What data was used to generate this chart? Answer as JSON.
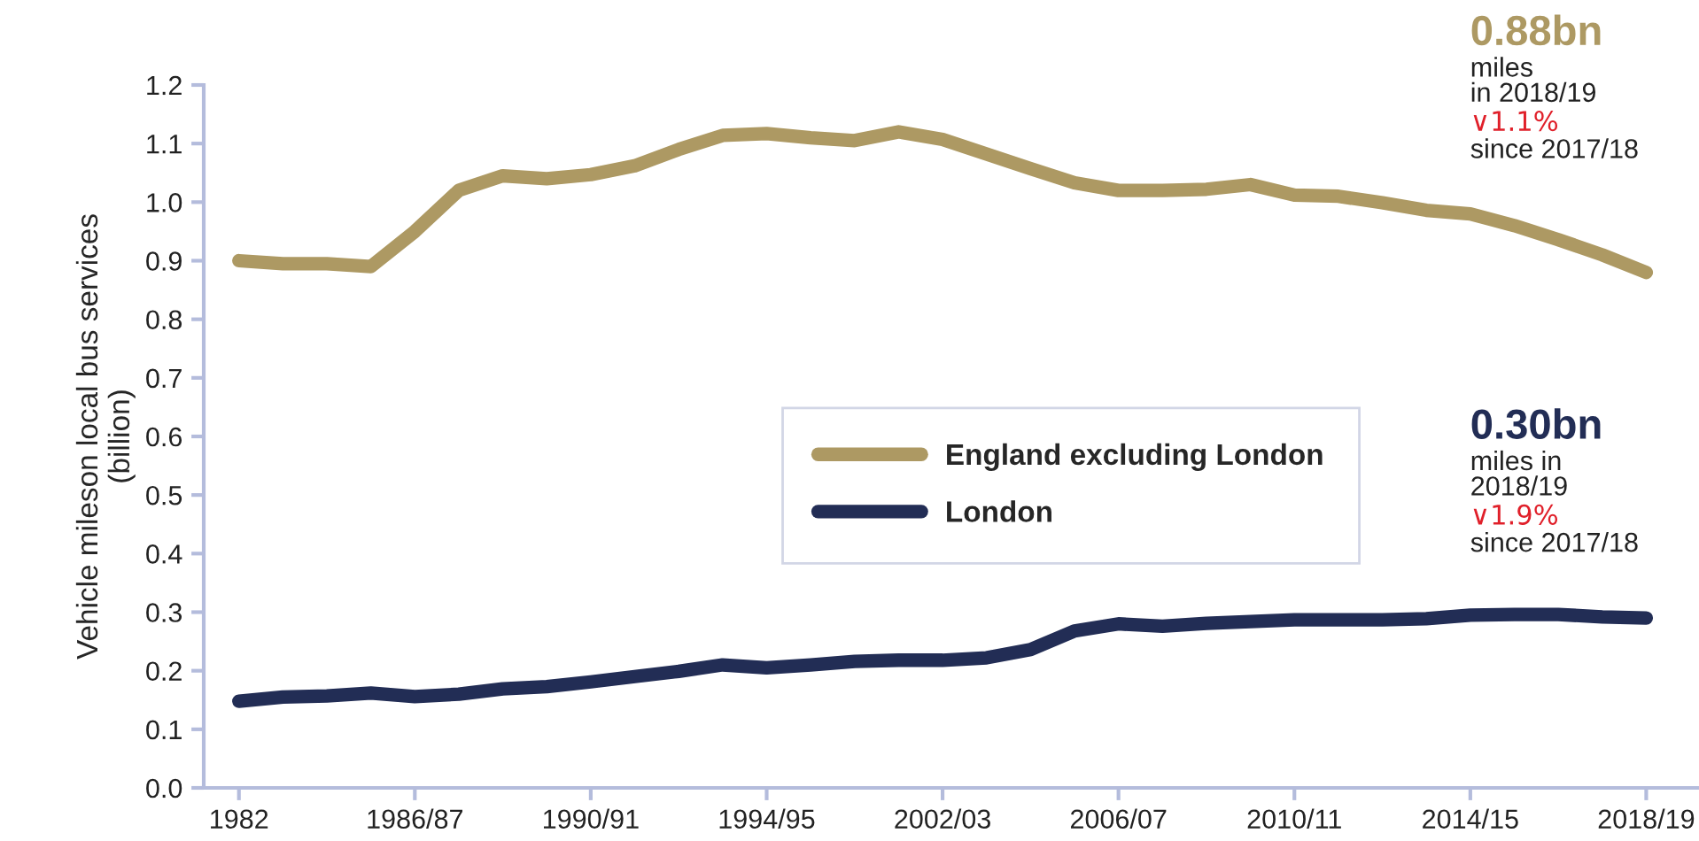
{
  "chart_data": {
    "type": "line",
    "ylabel": "Vehicle mileson local bus services\n(billion)",
    "categories": [
      "1982",
      null,
      null,
      null,
      "1986/87",
      null,
      null,
      null,
      "1990/91",
      null,
      null,
      null,
      "1994/95",
      null,
      null,
      null,
      "2002/03",
      null,
      null,
      null,
      "2006/07",
      null,
      null,
      null,
      "2010/11",
      null,
      null,
      null,
      "2014/15",
      null,
      null,
      null,
      "2018/19"
    ],
    "series": [
      {
        "name": "England excluding London",
        "color": "#ad9963",
        "values": [
          0.9,
          0.895,
          0.895,
          0.89,
          0.95,
          1.02,
          1.045,
          1.04,
          1.047,
          1.062,
          1.09,
          1.114,
          1.117,
          1.11,
          1.105,
          1.12,
          1.107,
          1.082,
          1.057,
          1.033,
          1.02,
          1.02,
          1.022,
          1.03,
          1.012,
          1.01,
          0.999,
          0.986,
          0.98,
          0.96,
          0.936,
          0.91,
          0.88
        ]
      },
      {
        "name": "London",
        "color": "#222d55",
        "values": [
          0.148,
          0.155,
          0.157,
          0.162,
          0.156,
          0.16,
          0.169,
          0.173,
          0.181,
          0.19,
          0.199,
          0.21,
          0.205,
          0.21,
          0.216,
          0.218,
          0.218,
          0.222,
          0.236,
          0.268,
          0.28,
          0.276,
          0.281,
          0.284,
          0.287,
          0.287,
          0.287,
          0.289,
          0.295,
          0.296,
          0.296,
          0.292,
          0.29
        ]
      }
    ],
    "ylim": [
      0,
      1.2
    ],
    "yticks": [
      {
        "value": 0,
        "label": "0.0"
      },
      0.1,
      0.2,
      0.3,
      0.4,
      0.5,
      0.6,
      0.7,
      0.8,
      0.9,
      {
        "value": 1,
        "label": "1.0"
      },
      1.1,
      1.2
    ],
    "annotations": [
      "0.88bn",
      "miles\nin 2018/19",
      "∨1.1%",
      "since 2017/18",
      "0.30bn",
      "miles in\n2018/19",
      "∨1.9%",
      "since 2017/18"
    ],
    "legend": "center",
    "grid": false,
    "marker": "none",
    "line_style": "solid"
  }
}
